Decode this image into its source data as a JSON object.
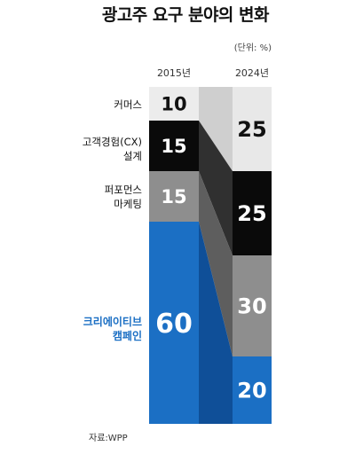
{
  "chart_data": {
    "type": "bar",
    "title": "광고주 요구 분야의 변화",
    "unit": "(단위: %)",
    "source": "자료:WPP",
    "categories": [
      "2015년",
      "2024년"
    ],
    "series": [
      {
        "name": "커머스",
        "values": [
          10,
          25
        ]
      },
      {
        "name": "고객경험(CX) 설계",
        "values": [
          15,
          25
        ]
      },
      {
        "name": "퍼포먼스 마케팅",
        "values": [
          15,
          30
        ]
      },
      {
        "name": "크리에이티브 캠페인",
        "values": [
          60,
          20
        ]
      }
    ],
    "stacked": true,
    "ylim": [
      0,
      100
    ],
    "colors": {
      "commerce": [
        "#ececec",
        "#e8e8e8"
      ],
      "cx": [
        "#0a0a0a",
        "#0a0a0a"
      ],
      "performance": [
        "#8e8e8e",
        "#8e8e8e"
      ],
      "creative": [
        "#1b6fc4",
        "#1b6fc4"
      ],
      "connector": [
        "#cfcfcf",
        "#303030",
        "#5e5e5e",
        "#0f4f98"
      ],
      "creative_label": "#1b6fc4"
    }
  }
}
